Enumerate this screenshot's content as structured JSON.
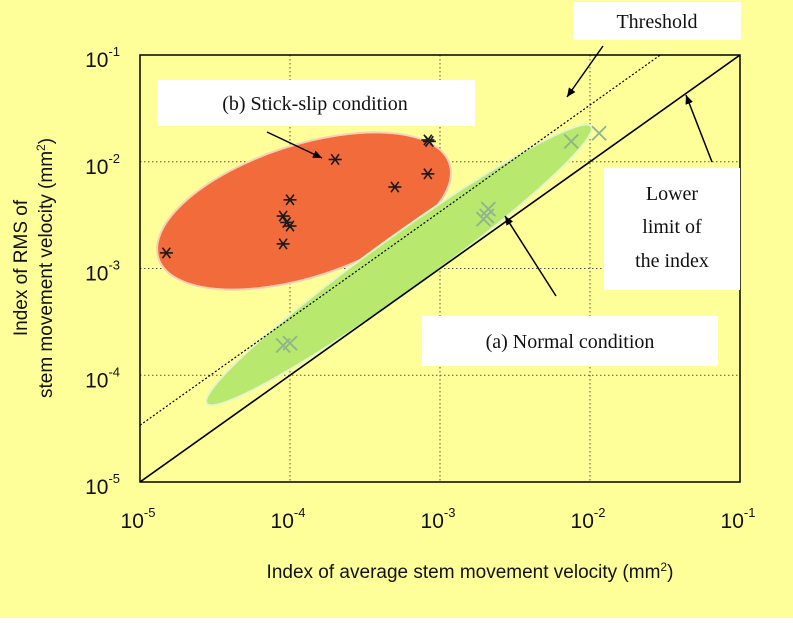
{
  "chart_data": {
    "type": "scatter",
    "xscale": "log",
    "yscale": "log",
    "xlim": [
      1e-05,
      0.1
    ],
    "ylim": [
      1e-05,
      0.1
    ],
    "grid": true,
    "xlabel": {
      "text": "Index of average  stem movement  velocity (mm",
      "sup": "2",
      "suffix": ")"
    },
    "ylabel_line1": {
      "text": "Index of RMS of"
    },
    "ylabel_line2": {
      "text": "stem movement  velocity (mm",
      "sup": "2",
      "suffix": ")"
    },
    "x_ticks": [
      {
        "value": 1e-05,
        "base": "10",
        "exp": "-5"
      },
      {
        "value": 0.0001,
        "base": "10",
        "exp": "-4"
      },
      {
        "value": 0.001,
        "base": "10",
        "exp": "-3"
      },
      {
        "value": 0.01,
        "base": "10",
        "exp": "-2"
      },
      {
        "value": 0.1,
        "base": "10",
        "exp": "-1"
      }
    ],
    "y_ticks": [
      {
        "value": 1e-05,
        "base": "10",
        "exp": "-5"
      },
      {
        "value": 0.0001,
        "base": "10",
        "exp": "-4"
      },
      {
        "value": 0.001,
        "base": "10",
        "exp": "-3"
      },
      {
        "value": 0.01,
        "base": "10",
        "exp": "-2"
      },
      {
        "value": 0.1,
        "base": "10",
        "exp": "-1"
      }
    ],
    "series": [
      {
        "name": "(b) Stick-slip condition",
        "marker": "asterisk",
        "color": "#1a1a1a",
        "region_color": "#f26b3a",
        "points": [
          {
            "x": 1.5e-05,
            "y": 0.0014
          },
          {
            "x": 9e-05,
            "y": 0.0017
          },
          {
            "x": 9e-05,
            "y": 0.0031
          },
          {
            "x": 9.5e-05,
            "y": 0.0027
          },
          {
            "x": 0.0001,
            "y": 0.0025
          },
          {
            "x": 0.0001,
            "y": 0.0044
          },
          {
            "x": 0.0002,
            "y": 0.0105
          },
          {
            "x": 0.0005,
            "y": 0.0058
          },
          {
            "x": 0.00083,
            "y": 0.0077
          },
          {
            "x": 0.00083,
            "y": 0.016
          },
          {
            "x": 0.00085,
            "y": 0.0155
          }
        ]
      },
      {
        "name": "(a) Normal condition",
        "marker": "x",
        "color": "#8fb38c",
        "region_color": "#b9e86e",
        "points": [
          {
            "x": 0.0001,
            "y": 0.0002
          },
          {
            "x": 9e-05,
            "y": 0.00019
          },
          {
            "x": 0.00195,
            "y": 0.0029
          },
          {
            "x": 0.00205,
            "y": 0.0031
          },
          {
            "x": 0.0021,
            "y": 0.0036
          },
          {
            "x": 0.0075,
            "y": 0.0155
          },
          {
            "x": 0.0115,
            "y": 0.0185
          }
        ]
      }
    ],
    "reference_lines": [
      {
        "name": "Lower limit of the index",
        "slope": 1,
        "factor": 1,
        "style": "solid"
      },
      {
        "name": "Threshold",
        "slope": 1,
        "factor": 3.4,
        "style": "dotted"
      }
    ],
    "annotations": {
      "threshold": "Threshold",
      "stick_slip": "(b) Stick-slip condition",
      "normal": "(a) Normal condition",
      "lower_limit_lines": [
        "Lower",
        "limit  of",
        "the index"
      ]
    }
  },
  "colors": {
    "background": "#ffff99",
    "plot_border": "#000000",
    "gridline": "#555555"
  }
}
